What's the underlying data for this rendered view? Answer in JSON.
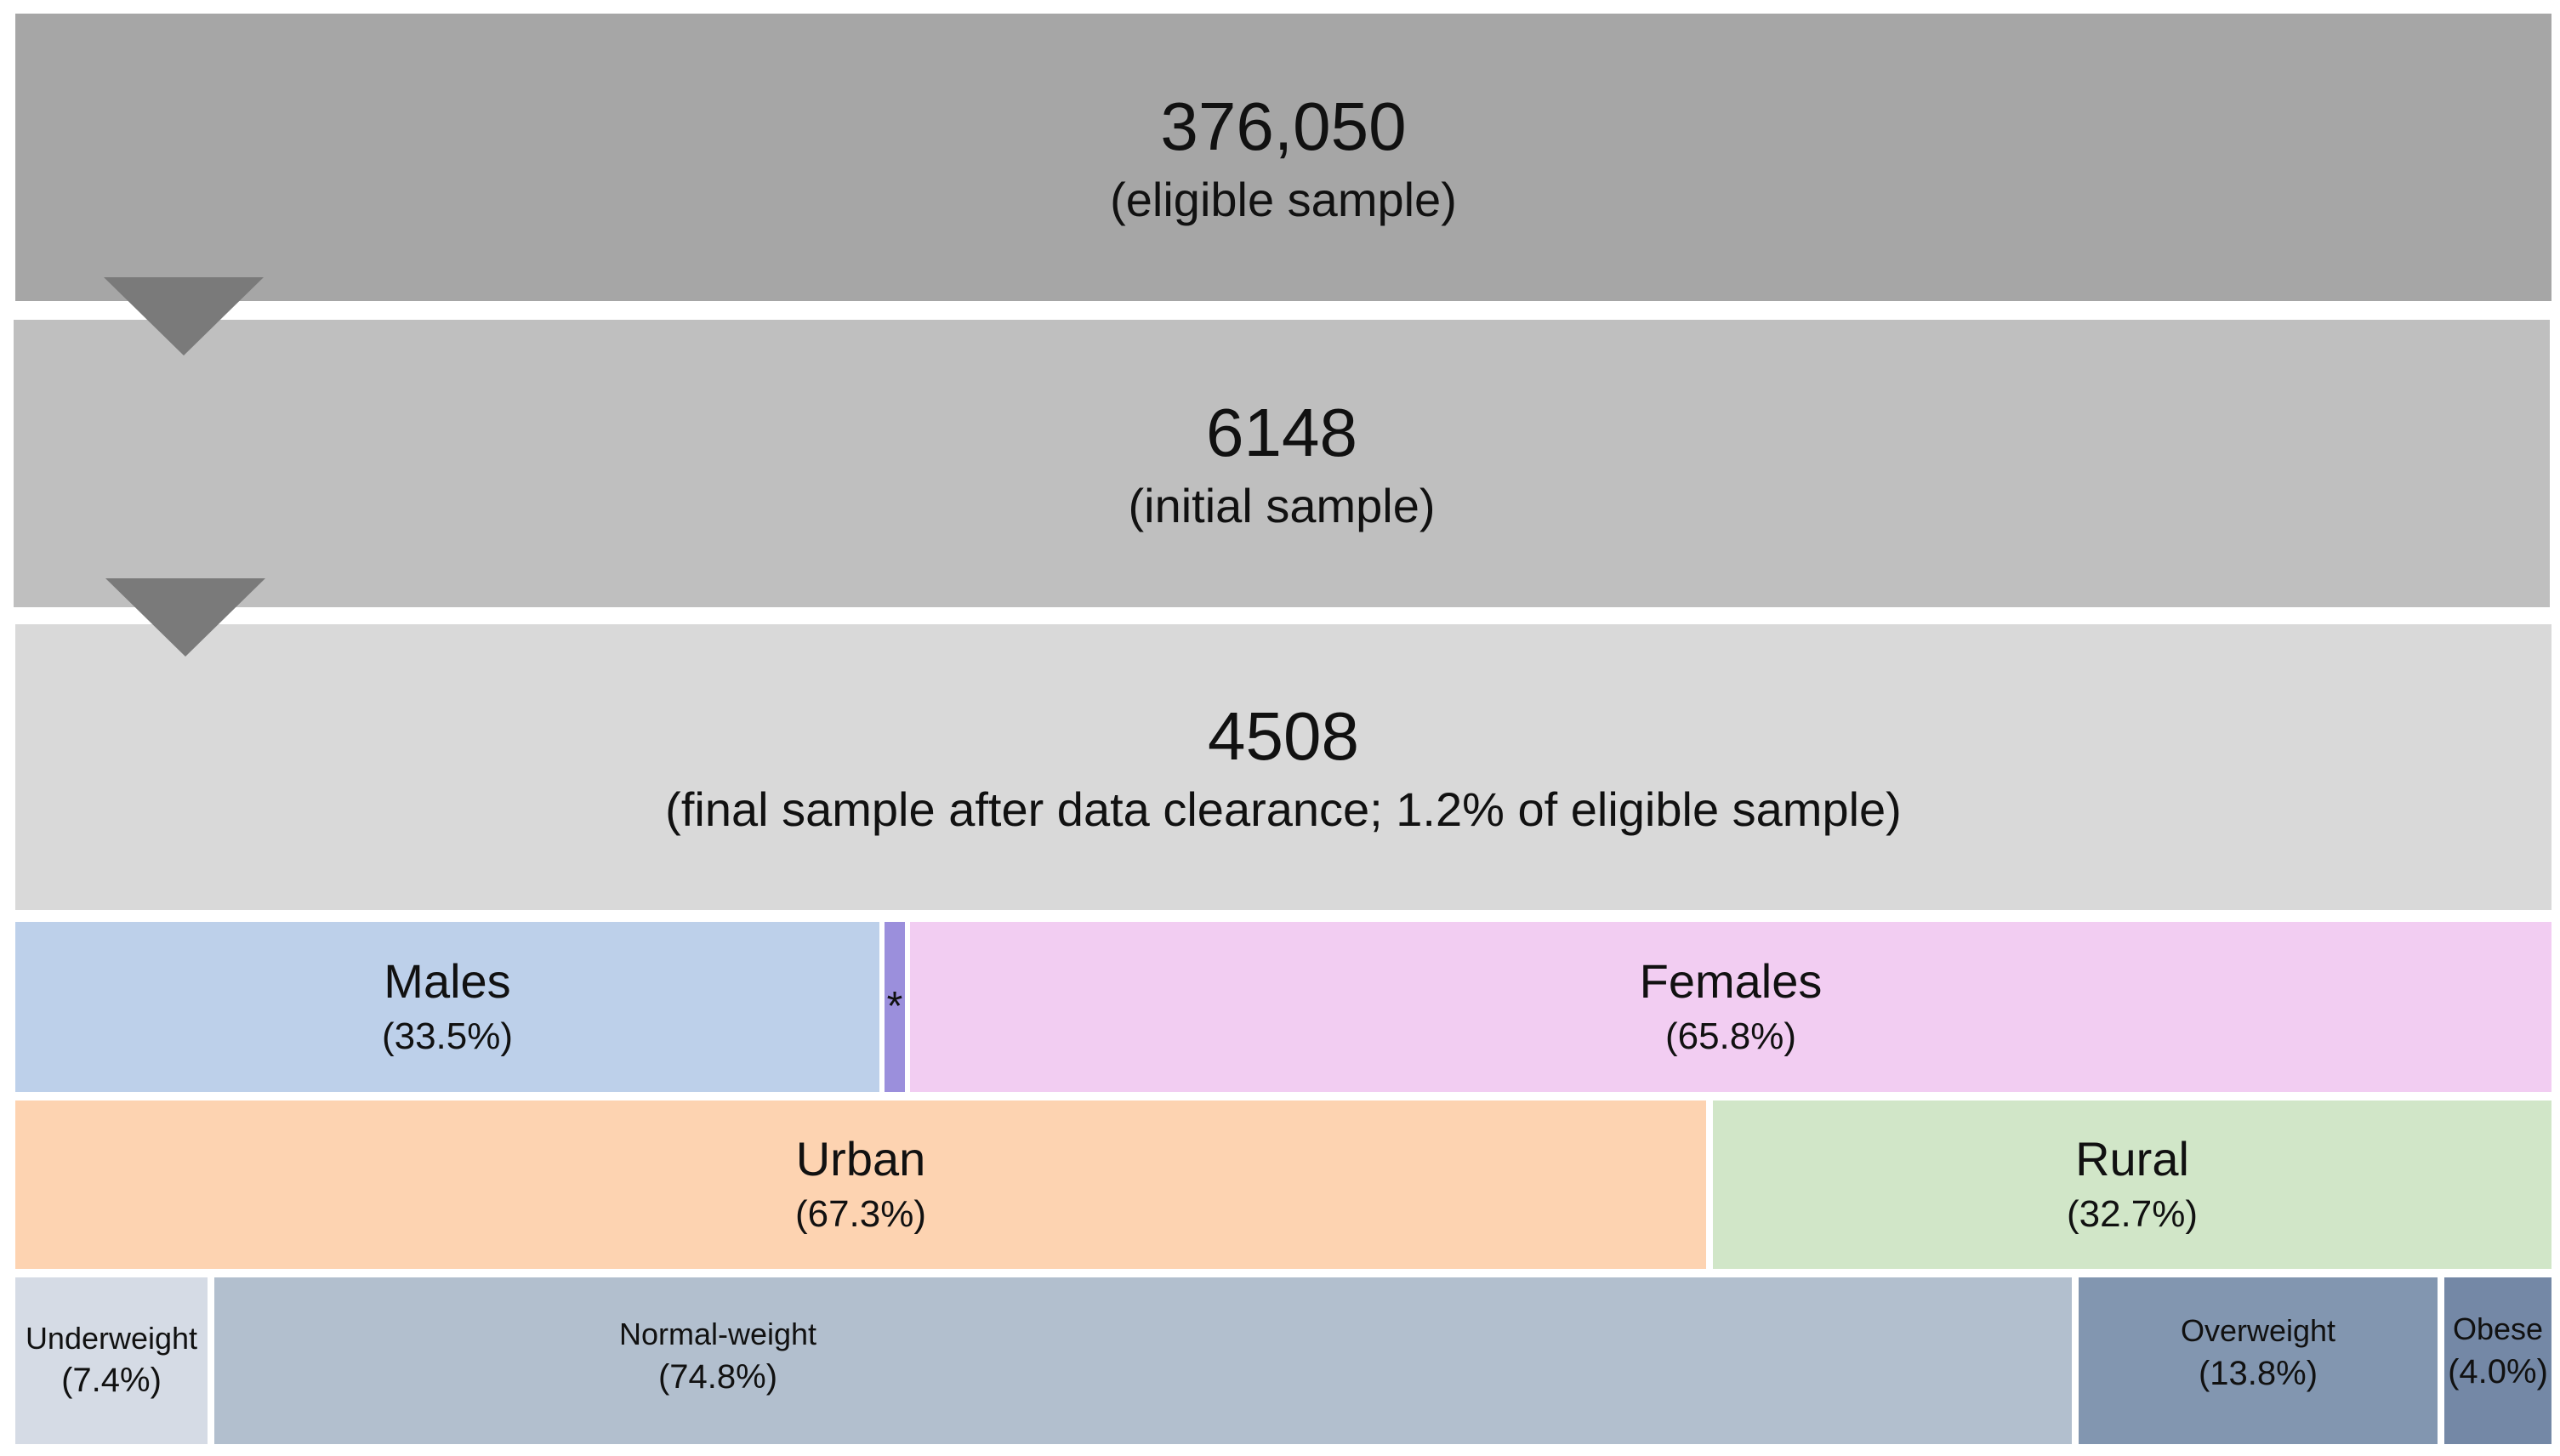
{
  "stages": [
    {
      "count": "376,050",
      "label": "(eligible sample)",
      "color": "#a6a6a6"
    },
    {
      "count": "6148",
      "label": "(initial sample)",
      "color": "#bfbfbf"
    },
    {
      "count": "4508",
      "label": "(final sample after data clearance; 1.2% of eligible sample)",
      "color": "#d9d9d9"
    }
  ],
  "sex": {
    "males": {
      "label": "Males",
      "pct": "(33.5%)",
      "value": 33.5,
      "color": "#bdd0ea"
    },
    "other": {
      "label": "*",
      "color": "#9b8fdc"
    },
    "females": {
      "label": "Females",
      "pct": "(65.8%)",
      "value": 65.8,
      "color": "#f2cdf2"
    }
  },
  "residence": {
    "urban": {
      "label": "Urban",
      "pct": "(67.3%)",
      "value": 67.3,
      "color": "#fdd3b1"
    },
    "rural": {
      "label": "Rural",
      "pct": "(32.7%)",
      "value": 32.7,
      "color": "#d1e6c8"
    }
  },
  "weight": {
    "underweight": {
      "label": "Underweight",
      "pct": "(7.4%)",
      "value": 7.4,
      "color": "#d5dbe5"
    },
    "normal": {
      "label": "Normal-weight",
      "pct": "(74.8%)",
      "value": 74.8,
      "color": "#b2bfce"
    },
    "overweight": {
      "label": "Overweight",
      "pct": "(13.8%)",
      "value": 13.8,
      "color": "#8296b0"
    },
    "obese": {
      "label": "Obese",
      "pct": "(4.0%)",
      "value": 4.0,
      "color": "#7488a6"
    }
  }
}
